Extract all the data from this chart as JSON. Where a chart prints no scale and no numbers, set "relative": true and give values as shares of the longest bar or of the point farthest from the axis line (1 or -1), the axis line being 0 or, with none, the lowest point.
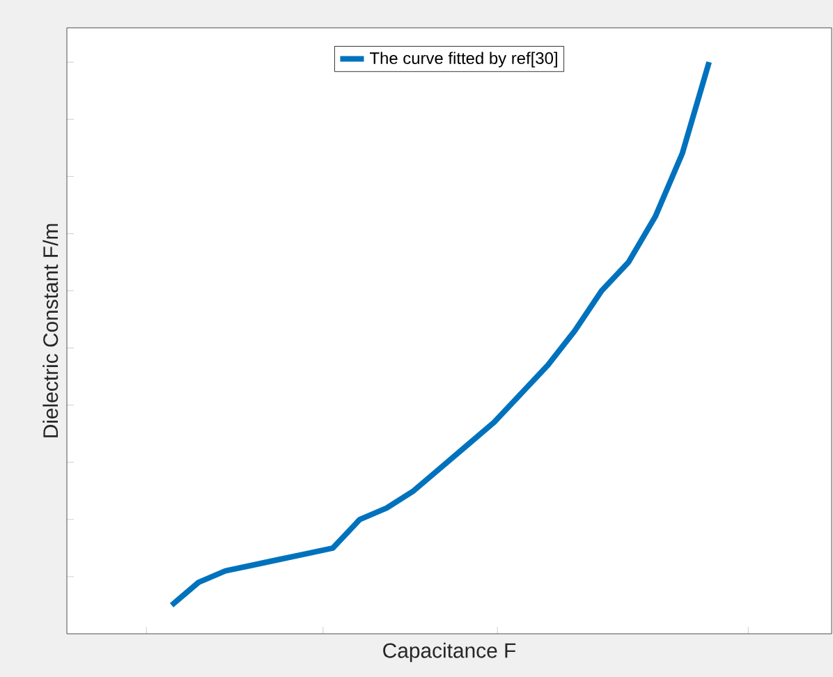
{
  "chart_data": {
    "type": "line",
    "relative": true,
    "xlabel": "Capacitance F",
    "ylabel": "Dielectric Constant F/m",
    "categories": [
      null,
      null,
      null,
      null,
      null,
      null,
      null,
      null,
      null,
      null,
      null,
      null,
      null,
      null,
      null,
      null,
      null,
      null,
      null,
      null,
      null
    ],
    "series": [
      {
        "name": "The curve fitted by ref[30]",
        "color": "#0072bd",
        "values": [
          0.05,
          0.09,
          0.11,
          0.12,
          0.13,
          0.14,
          0.15,
          0.2,
          0.22,
          0.25,
          0.29,
          0.33,
          0.37,
          0.42,
          0.47,
          0.53,
          0.6,
          0.65,
          0.73,
          0.84,
          1.0
        ]
      }
    ],
    "legend": "top",
    "marker": "none",
    "line_style": "solid"
  }
}
